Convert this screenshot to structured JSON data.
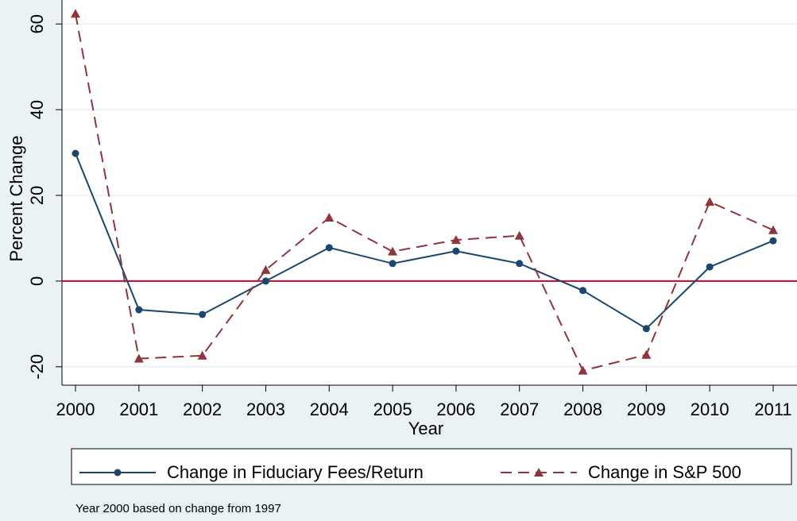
{
  "chart_data": {
    "type": "line",
    "x": [
      2000,
      2001,
      2002,
      2003,
      2004,
      2005,
      2006,
      2007,
      2008,
      2009,
      2010,
      2011
    ],
    "series": [
      {
        "name": "Change in Fiduciary Fees/Return",
        "color": "#1a476f",
        "marker": "circle",
        "dash": "solid",
        "values": [
          29.8,
          -6.7,
          -7.8,
          0,
          7.8,
          4.1,
          7.0,
          4.1,
          -2.2,
          -11.1,
          3.3,
          9.4
        ]
      },
      {
        "name": "Change in S&P 500",
        "color": "#90353b",
        "marker": "triangle",
        "dash": "dashed",
        "values": [
          62.4,
          -18.1,
          -17.4,
          2.6,
          14.8,
          6.9,
          9.6,
          10.6,
          -20.9,
          -17.2,
          18.5,
          11.9
        ]
      }
    ],
    "xlabel": "Year",
    "ylabel": "Percent Change",
    "xlim": [
      2000,
      2011
    ],
    "xticks": [
      2000,
      2001,
      2002,
      2003,
      2004,
      2005,
      2006,
      2007,
      2008,
      2009,
      2010,
      2011
    ],
    "ylim": [
      -24.3,
      65.6
    ],
    "yticks": [
      -20,
      0,
      20,
      40,
      60
    ],
    "grid": true,
    "refline": 0,
    "refline_color": "#c10534",
    "note": "Year 2000 based on change from 1997",
    "legend": "bottom"
  }
}
